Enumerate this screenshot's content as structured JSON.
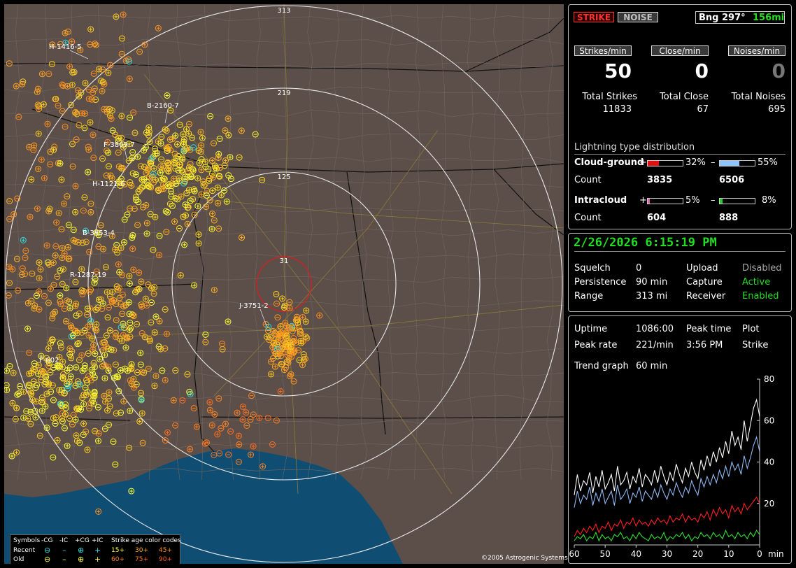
{
  "map": {
    "range_labels": [
      "313",
      "219",
      "125",
      "31"
    ],
    "storm_labels": [
      "H-1416-5",
      "B-2160-7",
      "F-3869-7",
      "H-1121-6",
      "B-3453-4",
      "R-1287-19",
      "J-3751-2",
      "F-602"
    ],
    "copyright": "©2005 Astrogenic Systems",
    "legend": {
      "symbols_label": "Symbols",
      "neg_cg": "-CG",
      "neg_ic": "-IC",
      "pos_cg": "+CG",
      "pos_ic": "+IC",
      "age_title": "Strike age color codes",
      "recent": "Recent",
      "old": "Old",
      "ages_recent": [
        "15+",
        "30+",
        "45+"
      ],
      "ages_old": [
        "60+",
        "75+",
        "90+"
      ]
    }
  },
  "status": {
    "strike_btn": "STRIKE",
    "noise_btn": "NOISE",
    "bearing": "Bng 297°",
    "distance": "156mi",
    "strikes_per_min_label": "Strikes/min",
    "close_per_min_label": "Close/min",
    "noises_per_min_label": "Noises/min",
    "strikes_per_min": "50",
    "close_per_min": "0",
    "noises_per_min": "0",
    "total_strikes_label": "Total Strikes",
    "total_close_label": "Total Close",
    "total_noises_label": "Total Noises",
    "total_strikes": "11833",
    "total_close": "67",
    "total_noises": "695",
    "dist_title": "Lightning type distribution",
    "cg_label": "Cloud-ground",
    "ic_label": "Intracloud",
    "count_label": "Count",
    "plus": "+",
    "minus": "–",
    "cg_pos_pct": "32%",
    "cg_neg_pct": "55%",
    "cg_pos_count": "3835",
    "cg_neg_count": "6506",
    "ic_pos_pct": "5%",
    "ic_neg_pct": "8%",
    "ic_pos_count": "604",
    "ic_neg_count": "888",
    "cg_pos_fill": 0.32,
    "cg_neg_fill": 0.55,
    "ic_pos_fill": 0.05,
    "ic_neg_fill": 0.08
  },
  "settings": {
    "datetime": "2/26/2026 6:15:19 PM",
    "squelch_label": "Squelch",
    "squelch": "0",
    "persistence_label": "Persistence",
    "persistence": "90 min",
    "range_label": "Range",
    "range": "313 mi",
    "upload_label": "Upload",
    "upload": "Disabled",
    "capture_label": "Capture",
    "capture": "Active",
    "receiver_label": "Receiver",
    "receiver": "Enabled"
  },
  "stats": {
    "uptime_label": "Uptime",
    "uptime": "1086:00",
    "peak_time_label": "Peak time",
    "plot_label": "Plot",
    "peak_rate_label": "Peak rate",
    "peak_rate": "221/min",
    "peak_time": "3:56 PM",
    "plot": "Strike",
    "trend_label": "Trend graph",
    "trend_range": "60 min"
  },
  "chart_data": {
    "type": "line",
    "xlabel": "min",
    "x_ticks": [
      "60",
      "50",
      "40",
      "30",
      "20",
      "10",
      "0"
    ],
    "y_ticks": [
      "80",
      "60",
      "40",
      "20"
    ],
    "ylim": [
      0,
      80
    ],
    "xlim": [
      60,
      0
    ],
    "series": [
      {
        "color": "#ffffff",
        "values": [
          24,
          34,
          26,
          31,
          29,
          35,
          25,
          33,
          28,
          36,
          27,
          30,
          34,
          26,
          38,
          29,
          31,
          35,
          27,
          33,
          30,
          37,
          28,
          34,
          32,
          29,
          36,
          30,
          38,
          33,
          29,
          35,
          31,
          39,
          34,
          30,
          37,
          33,
          40,
          35,
          32,
          41,
          36,
          43,
          38,
          45,
          40,
          47,
          42,
          50,
          44,
          55,
          48,
          52,
          46,
          60,
          50,
          58,
          66,
          70,
          62
        ]
      },
      {
        "color": "#8fb8f0",
        "values": [
          18,
          26,
          20,
          24,
          22,
          28,
          19,
          25,
          21,
          27,
          20,
          23,
          26,
          19,
          29,
          22,
          24,
          27,
          20,
          25,
          23,
          28,
          21,
          26,
          24,
          22,
          27,
          23,
          29,
          25,
          22,
          27,
          24,
          30,
          26,
          23,
          28,
          25,
          31,
          27,
          24,
          32,
          28,
          33,
          29,
          34,
          30,
          36,
          32,
          38,
          33,
          40,
          36,
          39,
          34,
          43,
          37,
          42,
          48,
          52,
          45
        ]
      },
      {
        "color": "#ff2020",
        "values": [
          4,
          7,
          5,
          8,
          6,
          9,
          7,
          10,
          6,
          9,
          8,
          11,
          7,
          10,
          9,
          12,
          8,
          11,
          10,
          13,
          9,
          12,
          10,
          11,
          9,
          12,
          10,
          13,
          11,
          12,
          10,
          14,
          11,
          13,
          12,
          15,
          11,
          14,
          12,
          13,
          11,
          15,
          13,
          16,
          12,
          17,
          14,
          18,
          15,
          17,
          13,
          19,
          16,
          18,
          15,
          20,
          17,
          19,
          21,
          23,
          20
        ]
      },
      {
        "color": "#30e030",
        "values": [
          2,
          4,
          3,
          5,
          2,
          4,
          3,
          6,
          2,
          5,
          3,
          4,
          2,
          5,
          4,
          6,
          3,
          4,
          2,
          5,
          3,
          6,
          4,
          3,
          2,
          5,
          3,
          4,
          3,
          6,
          2,
          4,
          3,
          5,
          4,
          6,
          3,
          5,
          2,
          4,
          3,
          6,
          4,
          5,
          3,
          6,
          4,
          5,
          3,
          7,
          4,
          5,
          3,
          6,
          4,
          5,
          3,
          6,
          4,
          7,
          5
        ]
      }
    ]
  }
}
